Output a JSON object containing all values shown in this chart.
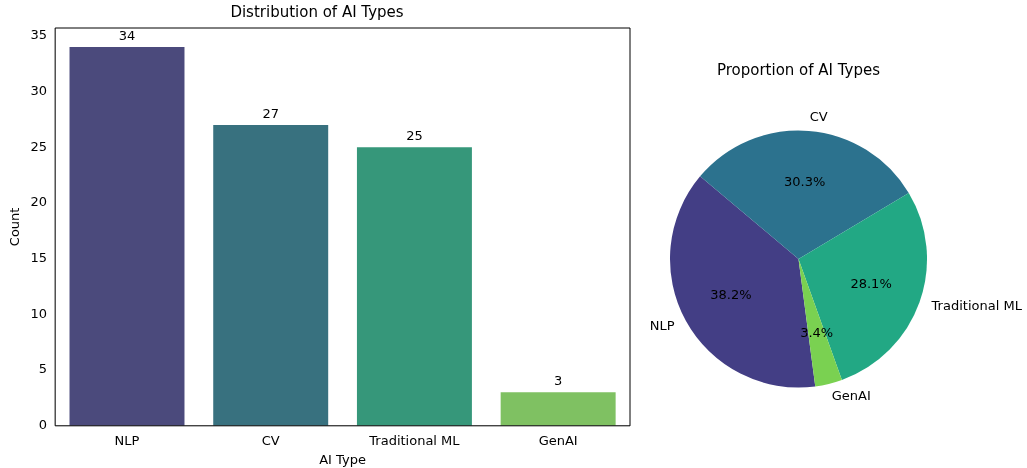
{
  "chart_data": [
    {
      "type": "bar",
      "title": "Distribution of AI Types",
      "xlabel": "AI Type",
      "ylabel": "Count",
      "categories": [
        "NLP",
        "CV",
        "Traditional ML",
        "GenAI"
      ],
      "values": [
        34,
        27,
        25,
        3
      ],
      "colors": [
        "#4b4a7c",
        "#38717f",
        "#36977a",
        "#7fc162"
      ],
      "ylim": [
        0,
        35.7
      ],
      "yticks": [
        0,
        5,
        10,
        15,
        20,
        25,
        30,
        35
      ],
      "data_labels": true,
      "legend": false,
      "grid": false
    },
    {
      "type": "pie",
      "title": "Proportion of AI Types",
      "categories": [
        "NLP",
        "CV",
        "Traditional ML",
        "GenAI"
      ],
      "values": [
        38.2,
        30.3,
        28.1,
        3.4
      ],
      "value_labels": [
        "38.2%",
        "30.3%",
        "28.1%",
        "3.4%"
      ],
      "colors": [
        "#433e85",
        "#2c728e",
        "#22a884",
        "#7ad151"
      ],
      "legend": false
    }
  ]
}
